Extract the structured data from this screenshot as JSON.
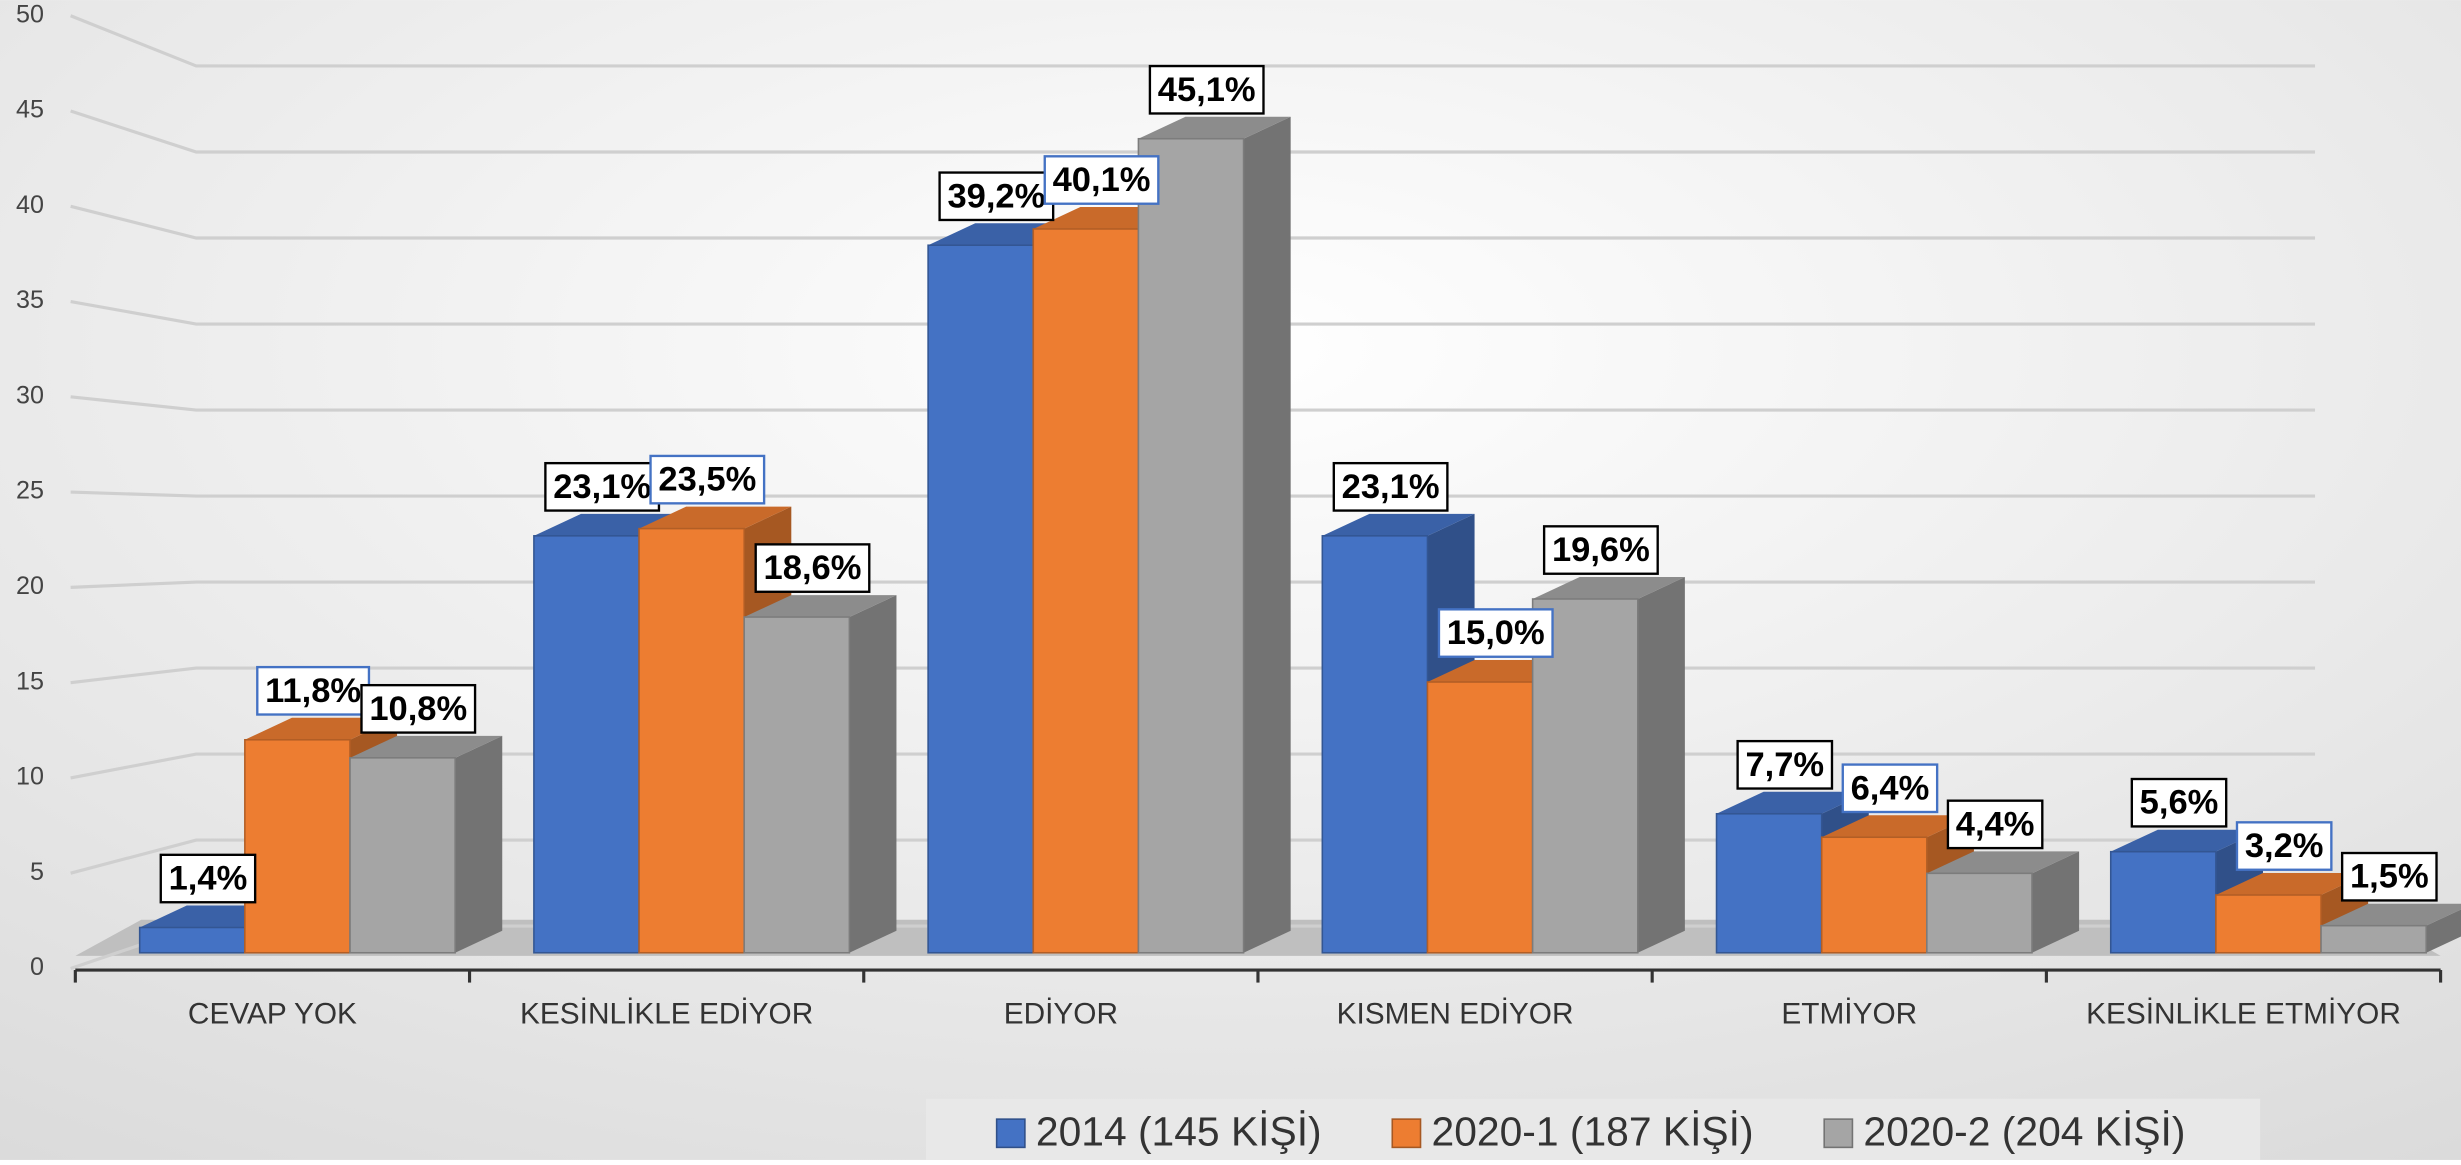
{
  "chart_data": {
    "type": "bar3d",
    "categories": [
      "CEVAP YOK",
      "KESİNLİKLE EDİYOR",
      "EDİYOR",
      "KISMEN EDİYOR",
      "ETMİYOR",
      "KESİNLİKLE ETMİYOR"
    ],
    "series": [
      {
        "name": "2014 (145 KİŞİ)",
        "color": "#4472c4",
        "values": [
          1.4,
          23.1,
          39.2,
          23.1,
          7.7,
          5.6
        ],
        "value_labels": [
          "1,4%",
          "23,1%",
          "39,2%",
          "23,1%",
          "7,7%",
          "5,6%"
        ]
      },
      {
        "name": "2020-1 (187 KİŞİ)",
        "color": "#ed7d31",
        "values": [
          11.8,
          23.5,
          40.1,
          15.0,
          6.4,
          3.2
        ],
        "value_labels": [
          "11,8%",
          "23,5%",
          "40,1%",
          "15,0%",
          "6,4%",
          "3,2%"
        ]
      },
      {
        "name": "2020-2 (204 KİŞİ)",
        "color": "#a5a5a5",
        "values": [
          10.8,
          18.6,
          45.1,
          19.6,
          4.4,
          1.5
        ],
        "value_labels": [
          "10,8%",
          "18,6%",
          "45,1%",
          "19,6%",
          "4,4%",
          "1,5%"
        ]
      }
    ],
    "ylim": [
      0,
      50
    ],
    "yticks": [
      0,
      5,
      10,
      15,
      20,
      25,
      30,
      35,
      40,
      45,
      50
    ],
    "grid": true,
    "legend": "bottom"
  }
}
